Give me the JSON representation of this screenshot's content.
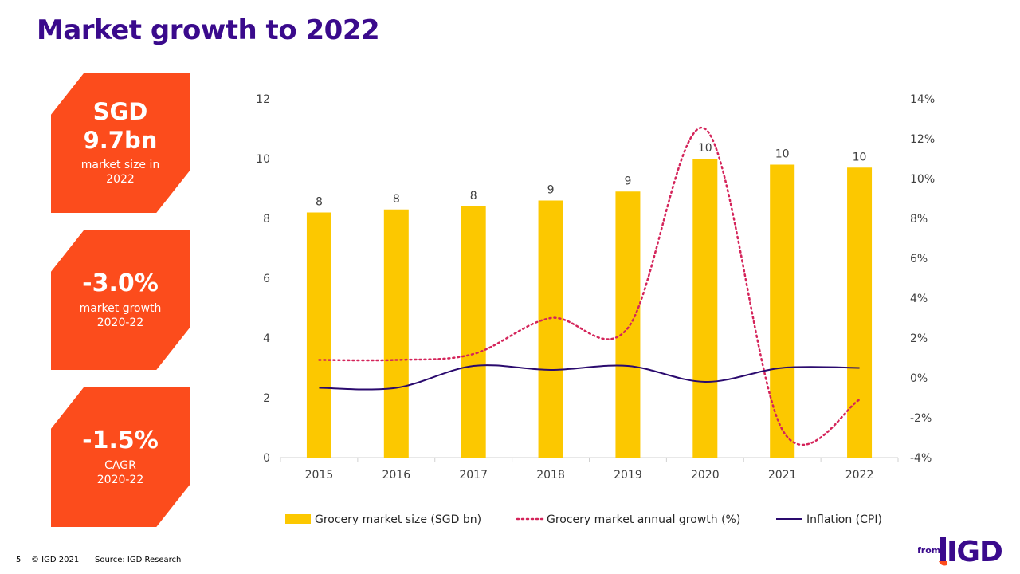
{
  "page": {
    "title": "Market growth to 2022",
    "page_number": "5",
    "copyright": "© IGD 2021",
    "source": "Source: IGD Research",
    "logo_prefix": "from",
    "logo_text": "IGD"
  },
  "colors": {
    "title": "#3a0a8c",
    "kpi_bg": "#fc4c1c",
    "bar": "#fcc800",
    "growth_line": "#d4245a",
    "inflation_line": "#2a0a6e",
    "logo_purple": "#3a0a8c",
    "logo_orange": "#fc4c1c"
  },
  "kpis": [
    {
      "big": "SGD\n9.7bn",
      "small": "market size in\n2022"
    },
    {
      "big": "-3.0%",
      "small": "market growth\n2020-22"
    },
    {
      "big": "-1.5%",
      "small": "CAGR\n2020-22"
    }
  ],
  "chart_data": {
    "type": "bar",
    "categories": [
      "2015",
      "2016",
      "2017",
      "2018",
      "2019",
      "2020",
      "2021",
      "2022"
    ],
    "series": [
      {
        "name": "Grocery market size (SGD bn)",
        "type": "bar",
        "axis": "left",
        "values": [
          8.2,
          8.3,
          8.4,
          8.6,
          8.9,
          10.0,
          9.8,
          9.7
        ],
        "labels": [
          "8",
          "8",
          "8",
          "9",
          "9",
          "10",
          "10",
          "10"
        ]
      },
      {
        "name": "Grocery market annual growth (%)",
        "type": "line",
        "style": "dotted",
        "axis": "right",
        "values": [
          0.9,
          0.9,
          1.2,
          3.0,
          2.5,
          12.5,
          -2.6,
          -1.1
        ]
      },
      {
        "name": "Inflation (CPI)",
        "type": "line",
        "style": "solid",
        "axis": "right",
        "values": [
          -0.5,
          -0.5,
          0.6,
          0.4,
          0.6,
          -0.2,
          0.5,
          0.5
        ]
      }
    ],
    "y_left": {
      "min": 0,
      "max": 12,
      "ticks": [
        "0",
        "2",
        "4",
        "6",
        "8",
        "10",
        "12"
      ]
    },
    "y_right": {
      "min": -4,
      "max": 14,
      "ticks": [
        "-4%",
        "-2%",
        "0%",
        "2%",
        "4%",
        "6%",
        "8%",
        "10%",
        "12%",
        "14%"
      ]
    },
    "grid": false,
    "legend_position": "bottom"
  }
}
